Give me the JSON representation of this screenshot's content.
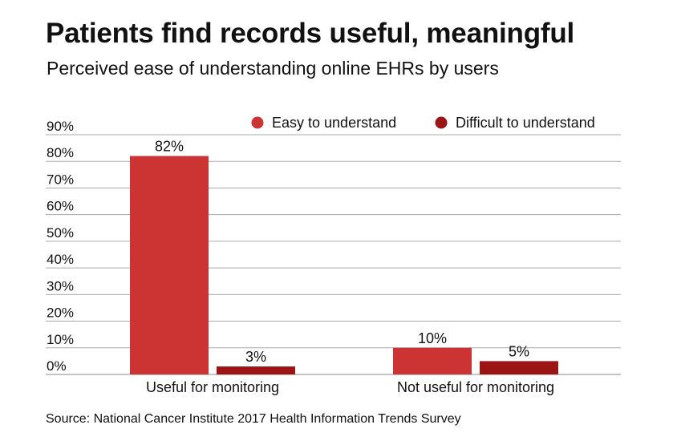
{
  "chart_data": {
    "type": "bar",
    "title": "Patients find records useful, meaningful",
    "subtitle": "Perceived ease of understanding online EHRs by users",
    "source": "Source: National Cancer Institute 2017 Health Information Trends Survey",
    "categories": [
      "Useful for monitoring",
      "Not useful for monitoring"
    ],
    "series": [
      {
        "name": "Easy to understand",
        "values": [
          82,
          10
        ],
        "labels": [
          "82%",
          "10%"
        ],
        "color": "#cc3333"
      },
      {
        "name": "Difficult to understand",
        "values": [
          3,
          5
        ],
        "labels": [
          "3%",
          "5%"
        ],
        "color": "#9b1515"
      }
    ],
    "yticks": [
      "0%",
      "10%",
      "20%",
      "30%",
      "40%",
      "50%",
      "60%",
      "70%",
      "80%",
      "90%"
    ],
    "ylim": [
      0,
      90
    ],
    "grid": true,
    "legend_position": "top-right"
  }
}
